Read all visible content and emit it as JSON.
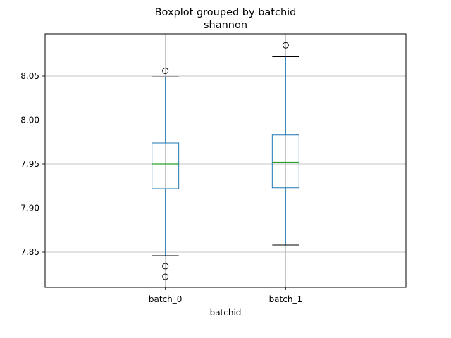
{
  "chart_data": {
    "type": "boxplot",
    "title": "Boxplot grouped by batchid",
    "subtitle": "shannon",
    "xlabel": "batchid",
    "ylabel": "",
    "categories": [
      "batch_0",
      "batch_1"
    ],
    "ylim": [
      7.81,
      8.098
    ],
    "yticks": [
      7.85,
      7.9,
      7.95,
      8.0,
      8.05
    ],
    "ytick_labels": [
      "7.85",
      "7.90",
      "7.95",
      "8.00",
      "8.05"
    ],
    "grid": true,
    "boxes": [
      {
        "name": "batch_0",
        "whisker_low": 7.846,
        "q1": 7.922,
        "median": 7.95,
        "q3": 7.974,
        "whisker_high": 8.049,
        "outliers": [
          8.056,
          7.834,
          7.822
        ]
      },
      {
        "name": "batch_1",
        "whisker_low": 7.858,
        "q1": 7.923,
        "median": 7.952,
        "q3": 7.983,
        "whisker_high": 8.072,
        "outliers": [
          8.085
        ]
      }
    ],
    "colors": {
      "box": "#1f77b4",
      "median": "#2ca02c",
      "grid": "#b0b0b0",
      "axes": "#000000"
    }
  }
}
